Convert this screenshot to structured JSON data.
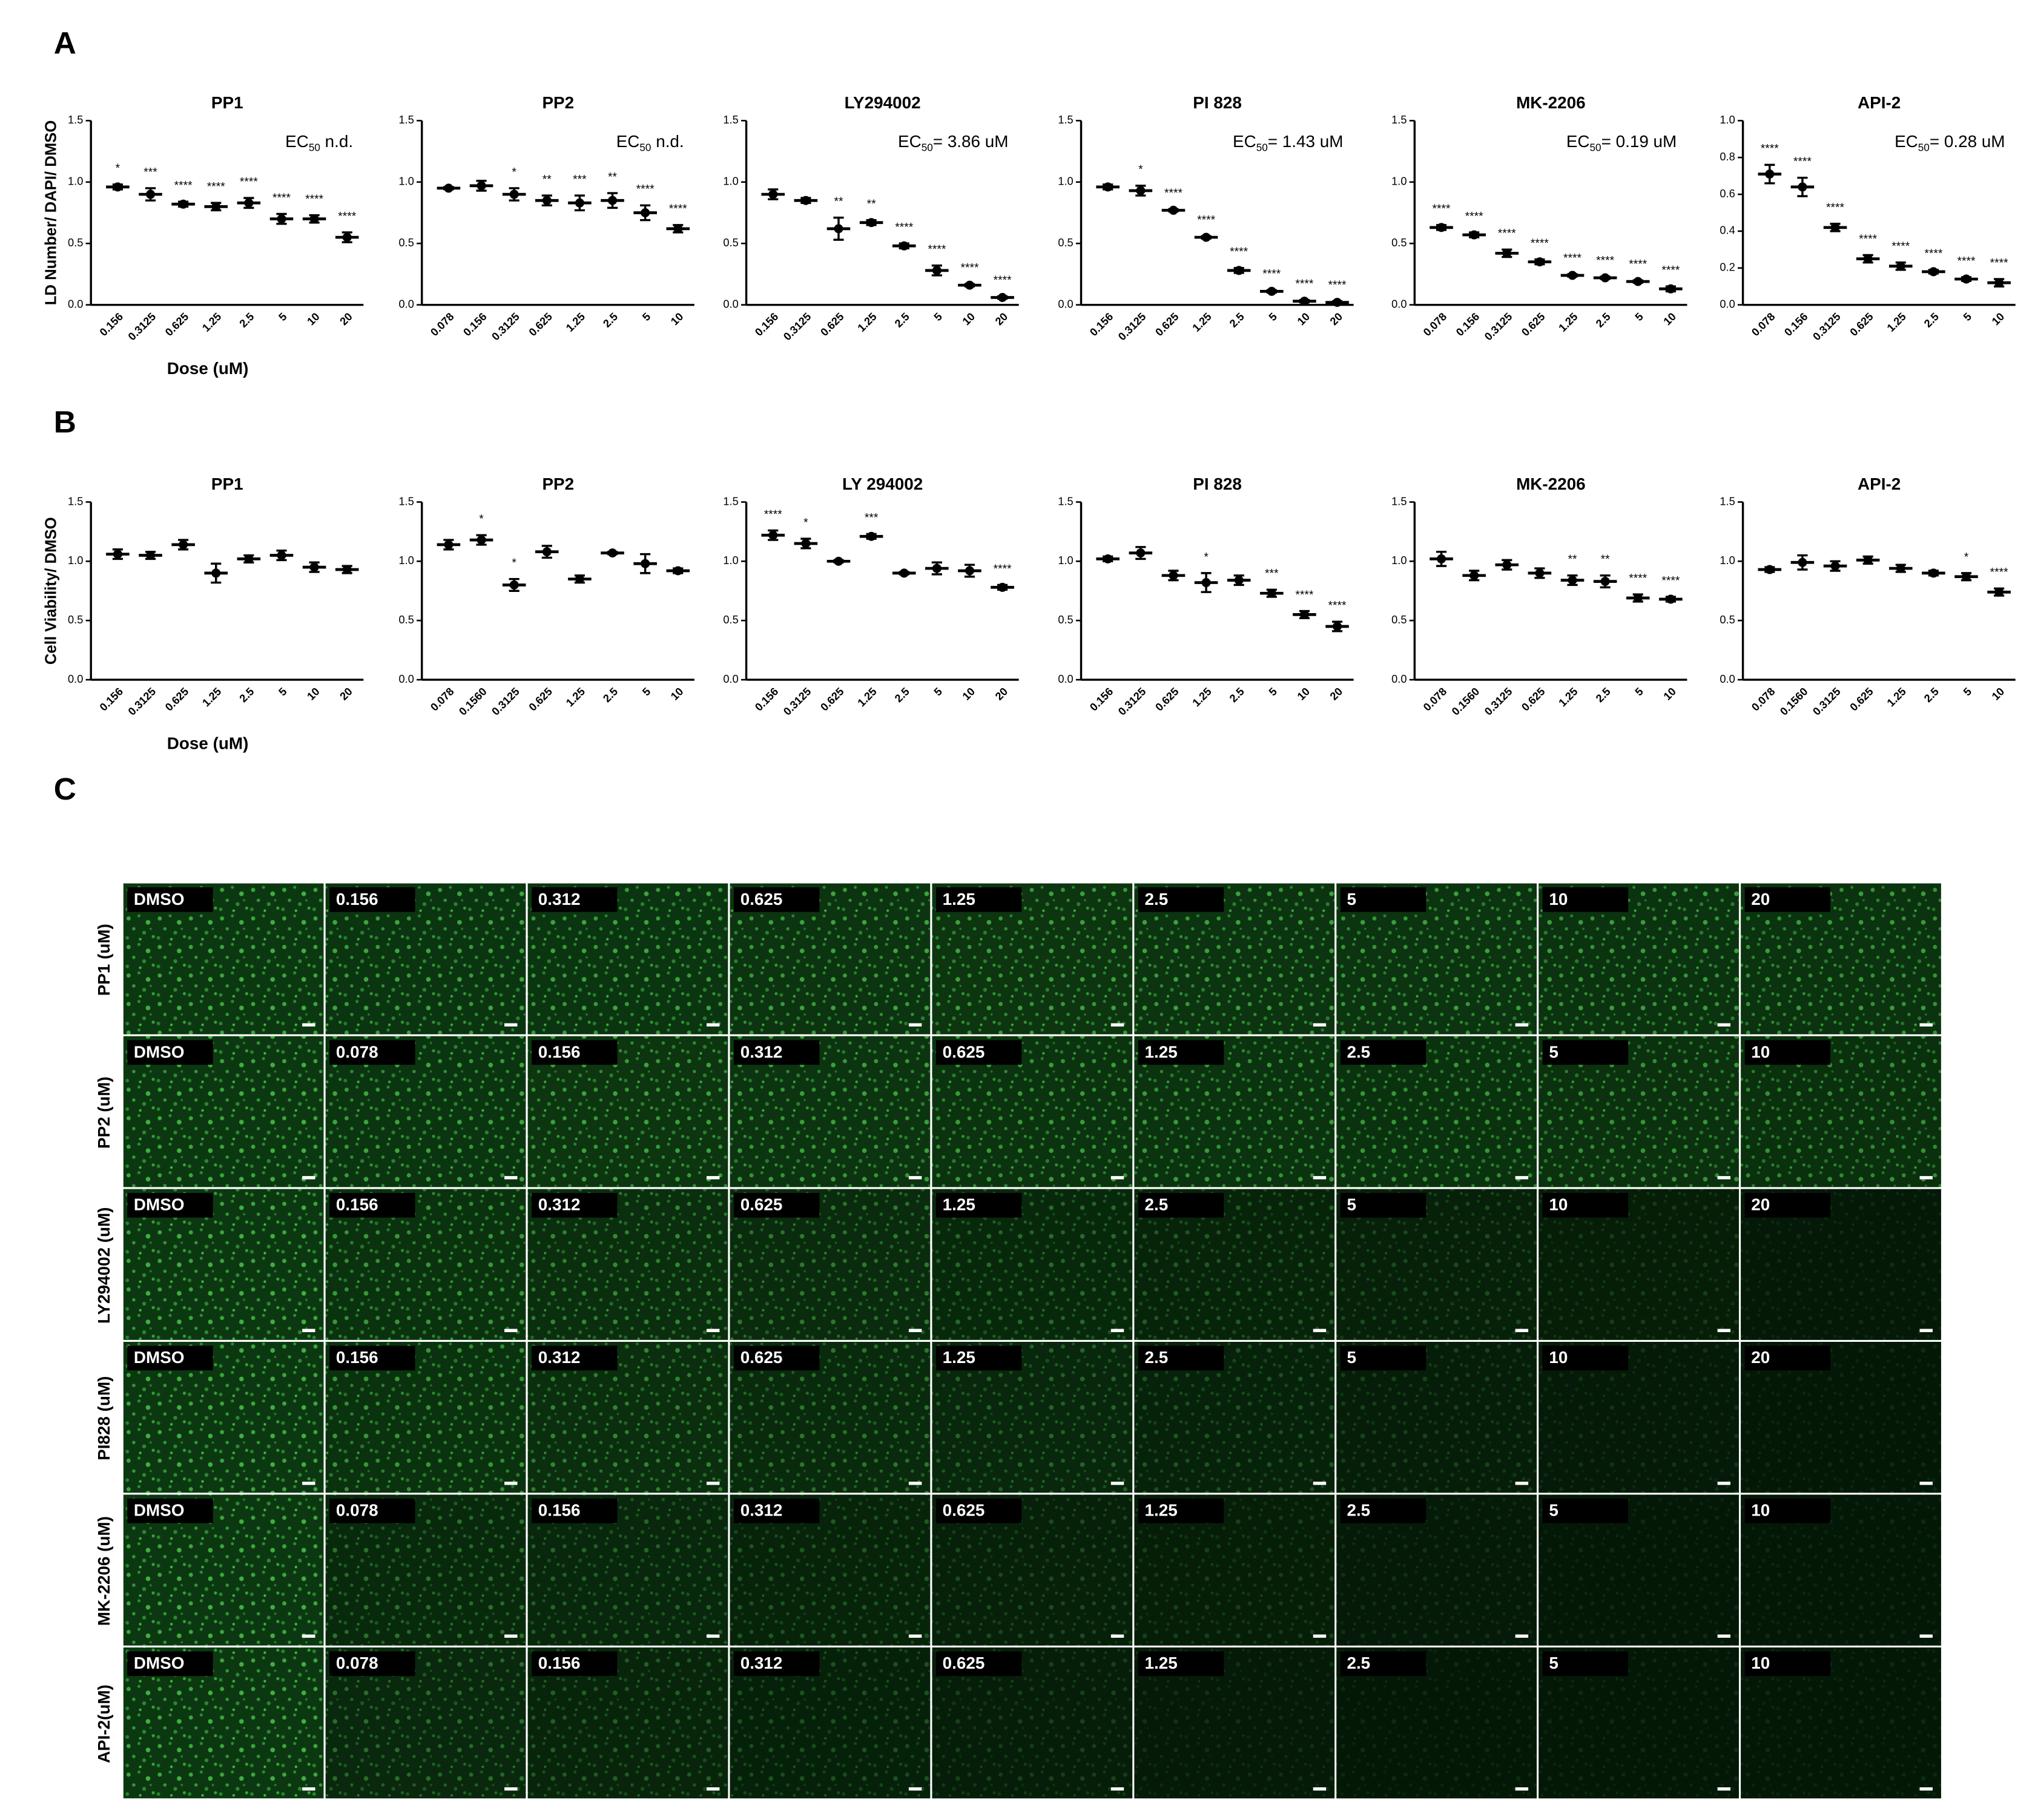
{
  "panels": [
    "A",
    "B",
    "C"
  ],
  "chart_data": [
    {
      "type": "dot",
      "row": 0,
      "title": "PP1",
      "ylabel": "LD Number/ DAPI/ DMSO",
      "xlabel": "Dose (uM)",
      "annotation": [
        "EC",
        "50",
        " n.d."
      ],
      "categories": [
        "0.156",
        "0.3125",
        "0.625",
        "1.25",
        "2.5",
        "5",
        "10",
        "20"
      ],
      "values": [
        0.96,
        0.9,
        0.82,
        0.8,
        0.83,
        0.7,
        0.7,
        0.55
      ],
      "errors": [
        0.02,
        0.05,
        0.02,
        0.03,
        0.04,
        0.04,
        0.03,
        0.04
      ],
      "value_labels": [
        "*",
        "***",
        "****",
        "****",
        "****",
        "****",
        "****",
        "****"
      ],
      "ylim": [
        0,
        1.5
      ],
      "yticks": [
        {
          "value": 0,
          "label": "0.0"
        },
        {
          "value": 0.5,
          "label": "0.5"
        },
        {
          "value": 1,
          "label": "1.0"
        },
        {
          "value": 1.5,
          "label": "1.5"
        }
      ],
      "color": "#000000"
    },
    {
      "type": "dot",
      "row": 0,
      "title": "PP2",
      "annotation": [
        "EC",
        "50",
        " n.d."
      ],
      "categories": [
        "0.078",
        "0.156",
        "0.3125",
        "0.625",
        "1.25",
        "2.5",
        "5",
        "10"
      ],
      "values": [
        0.95,
        0.97,
        0.9,
        0.85,
        0.83,
        0.85,
        0.75,
        0.62
      ],
      "errors": [
        0.01,
        0.04,
        0.05,
        0.04,
        0.06,
        0.06,
        0.06,
        0.03
      ],
      "value_labels": [
        null,
        null,
        "*",
        "**",
        "***",
        "**",
        "****",
        "****"
      ],
      "ylim": [
        0,
        1.5
      ],
      "yticks": [
        {
          "value": 0,
          "label": "0.0"
        },
        {
          "value": 0.5,
          "label": "0.5"
        },
        {
          "value": 1,
          "label": "1.0"
        },
        {
          "value": 1.5,
          "label": "1.5"
        }
      ],
      "color": "#000000"
    },
    {
      "type": "dot",
      "row": 0,
      "title": "LY294002",
      "annotation": [
        "EC",
        "50",
        "= 3.86 uM"
      ],
      "categories": [
        "0.156",
        "0.3125",
        "0.625",
        "1.25",
        "2.5",
        "5",
        "10",
        "20"
      ],
      "values": [
        0.9,
        0.85,
        0.62,
        0.67,
        0.48,
        0.28,
        0.16,
        0.06
      ],
      "errors": [
        0.04,
        0.02,
        0.09,
        0.02,
        0.02,
        0.04,
        0.01,
        0.01
      ],
      "value_labels": [
        null,
        null,
        "**",
        "**",
        "****",
        "****",
        "****",
        "****"
      ],
      "ylim": [
        0,
        1.5
      ],
      "yticks": [
        {
          "value": 0,
          "label": "0.0"
        },
        {
          "value": 0.5,
          "label": "0.5"
        },
        {
          "value": 1,
          "label": "1.0"
        },
        {
          "value": 1.5,
          "label": "1.5"
        }
      ],
      "color": "#000000"
    },
    {
      "type": "dot",
      "row": 0,
      "title": "PI 828",
      "annotation": [
        "EC",
        "50",
        "= 1.43 uM"
      ],
      "categories": [
        "0.156",
        "0.3125",
        "0.625",
        "1.25",
        "2.5",
        "5",
        "10",
        "20"
      ],
      "values": [
        0.96,
        0.93,
        0.77,
        0.55,
        0.28,
        0.11,
        0.03,
        0.02
      ],
      "errors": [
        0.02,
        0.04,
        0.01,
        0.01,
        0.02,
        0.01,
        0.01,
        0.01
      ],
      "value_labels": [
        null,
        "*",
        "****",
        "****",
        "****",
        "****",
        "****",
        "****"
      ],
      "ylim": [
        0,
        1.5
      ],
      "yticks": [
        {
          "value": 0,
          "label": "0.0"
        },
        {
          "value": 0.5,
          "label": "0.5"
        },
        {
          "value": 1,
          "label": "1.0"
        },
        {
          "value": 1.5,
          "label": "1.5"
        }
      ],
      "color": "#000000"
    },
    {
      "type": "dot",
      "row": 0,
      "title": "MK-2206",
      "annotation": [
        "EC",
        "50",
        "= 0.19 uM"
      ],
      "categories": [
        "0.078",
        "0.156",
        "0.3125",
        "0.625",
        "1.25",
        "2.5",
        "5",
        "10"
      ],
      "values": [
        0.63,
        0.57,
        0.42,
        0.35,
        0.24,
        0.22,
        0.19,
        0.13
      ],
      "errors": [
        0.02,
        0.02,
        0.03,
        0.02,
        0.01,
        0.01,
        0.01,
        0.02
      ],
      "value_labels": [
        "****",
        "****",
        "****",
        "****",
        "****",
        "****",
        "****",
        "****"
      ],
      "ylim": [
        0,
        1.5
      ],
      "yticks": [
        {
          "value": 0,
          "label": "0.0"
        },
        {
          "value": 0.5,
          "label": "0.5"
        },
        {
          "value": 1,
          "label": "1.0"
        },
        {
          "value": 1.5,
          "label": "1.5"
        }
      ],
      "color": "#000000"
    },
    {
      "type": "dot",
      "row": 0,
      "title": "API-2",
      "annotation": [
        "EC",
        "50",
        "= 0.28 uM"
      ],
      "categories": [
        "0.078",
        "0.156",
        "0.3125",
        "0.625",
        "1.25",
        "2.5",
        "5",
        "10"
      ],
      "values": [
        0.71,
        0.64,
        0.42,
        0.25,
        0.21,
        0.18,
        0.14,
        0.12
      ],
      "errors": [
        0.05,
        0.05,
        0.02,
        0.02,
        0.02,
        0.01,
        0.01,
        0.02
      ],
      "value_labels": [
        "****",
        "****",
        "****",
        "****",
        "****",
        "****",
        "****",
        "****"
      ],
      "ylim": [
        0,
        1
      ],
      "yticks": [
        {
          "value": 0,
          "label": "0.0"
        },
        {
          "value": 0.2,
          "label": "0.2"
        },
        {
          "value": 0.4,
          "label": "0.4"
        },
        {
          "value": 0.6,
          "label": "0.6"
        },
        {
          "value": 0.8,
          "label": "0.8"
        },
        {
          "value": 1,
          "label": "1.0"
        }
      ],
      "color": "#000000"
    },
    {
      "type": "dot",
      "row": 1,
      "title": "PP1",
      "ylabel": "Cell Viability/ DMSO",
      "xlabel": "Dose (uM)",
      "categories": [
        "0.156",
        "0.3125",
        "0.625",
        "1.25",
        "2.5",
        "5",
        "10",
        "20"
      ],
      "values": [
        1.06,
        1.05,
        1.14,
        0.9,
        1.02,
        1.05,
        0.95,
        0.93
      ],
      "errors": [
        0.04,
        0.03,
        0.04,
        0.08,
        0.03,
        0.04,
        0.04,
        0.03
      ],
      "value_labels": [
        null,
        null,
        null,
        null,
        null,
        null,
        null,
        null
      ],
      "ylim": [
        0,
        1.5
      ],
      "yticks": [
        {
          "value": 0,
          "label": "0.0"
        },
        {
          "value": 0.5,
          "label": "0.5"
        },
        {
          "value": 1,
          "label": "1.0"
        },
        {
          "value": 1.5,
          "label": "1.5"
        }
      ],
      "color": "#000000"
    },
    {
      "type": "dot",
      "row": 1,
      "title": "PP2",
      "categories": [
        "0.078",
        "0.1560",
        "0.3125",
        "0.625",
        "1.25",
        "2.5",
        "5",
        "10"
      ],
      "values": [
        1.14,
        1.18,
        0.8,
        1.08,
        0.85,
        1.07,
        0.98,
        0.92
      ],
      "errors": [
        0.04,
        0.04,
        0.05,
        0.05,
        0.03,
        0.01,
        0.08,
        0.02
      ],
      "value_labels": [
        null,
        "*",
        "*",
        null,
        null,
        null,
        null,
        null
      ],
      "ylim": [
        0,
        1.5
      ],
      "yticks": [
        {
          "value": 0,
          "label": "0.0"
        },
        {
          "value": 0.5,
          "label": "0.5"
        },
        {
          "value": 1,
          "label": "1.0"
        },
        {
          "value": 1.5,
          "label": "1.5"
        }
      ],
      "color": "#000000"
    },
    {
      "type": "dot",
      "row": 1,
      "title": "LY 294002",
      "categories": [
        "0.156",
        "0.3125",
        "0.625",
        "1.25",
        "2.5",
        "5",
        "10",
        "20"
      ],
      "values": [
        1.22,
        1.15,
        1.0,
        1.21,
        0.9,
        0.94,
        0.92,
        0.78
      ],
      "errors": [
        0.04,
        0.04,
        0.01,
        0.02,
        0.01,
        0.05,
        0.05,
        0.02
      ],
      "value_labels": [
        "****",
        "*",
        null,
        "***",
        null,
        null,
        null,
        "****"
      ],
      "ylim": [
        0,
        1.5
      ],
      "yticks": [
        {
          "value": 0,
          "label": "0.0"
        },
        {
          "value": 0.5,
          "label": "0.5"
        },
        {
          "value": 1,
          "label": "1.0"
        },
        {
          "value": 1.5,
          "label": "1.5"
        }
      ],
      "color": "#000000"
    },
    {
      "type": "dot",
      "row": 1,
      "title": "PI 828",
      "categories": [
        "0.156",
        "0.3125",
        "0.625",
        "1.25",
        "2.5",
        "5",
        "10",
        "20"
      ],
      "values": [
        1.02,
        1.07,
        0.88,
        0.82,
        0.84,
        0.73,
        0.55,
        0.45
      ],
      "errors": [
        0.02,
        0.05,
        0.04,
        0.08,
        0.04,
        0.03,
        0.03,
        0.04
      ],
      "value_labels": [
        null,
        null,
        null,
        "*",
        null,
        "***",
        "****",
        "****"
      ],
      "ylim": [
        0,
        1.5
      ],
      "yticks": [
        {
          "value": 0,
          "label": "0.0"
        },
        {
          "value": 0.5,
          "label": "0.5"
        },
        {
          "value": 1,
          "label": "1.0"
        },
        {
          "value": 1.5,
          "label": "1.5"
        }
      ],
      "color": "#000000"
    },
    {
      "type": "dot",
      "row": 1,
      "title": "MK-2206",
      "categories": [
        "0.078",
        "0.1560",
        "0.3125",
        "0.625",
        "1.25",
        "2.5",
        "5",
        "10"
      ],
      "values": [
        1.02,
        0.88,
        0.97,
        0.9,
        0.84,
        0.83,
        0.69,
        0.68
      ],
      "errors": [
        0.06,
        0.04,
        0.04,
        0.04,
        0.04,
        0.05,
        0.03,
        0.02
      ],
      "value_labels": [
        null,
        null,
        null,
        null,
        "**",
        "**",
        "****",
        "****"
      ],
      "ylim": [
        0,
        1.5
      ],
      "yticks": [
        {
          "value": 0,
          "label": "0.0"
        },
        {
          "value": 0.5,
          "label": "0.5"
        },
        {
          "value": 1,
          "label": "1.0"
        },
        {
          "value": 1.5,
          "label": "1.5"
        }
      ],
      "color": "#000000"
    },
    {
      "type": "dot",
      "row": 1,
      "title": "API-2",
      "categories": [
        "0.078",
        "0.1560",
        "0.3125",
        "0.625",
        "1.25",
        "2.5",
        "5",
        "10"
      ],
      "values": [
        0.93,
        0.99,
        0.96,
        1.01,
        0.94,
        0.9,
        0.87,
        0.74
      ],
      "errors": [
        0.02,
        0.06,
        0.04,
        0.03,
        0.03,
        0.02,
        0.03,
        0.03
      ],
      "value_labels": [
        null,
        null,
        null,
        null,
        null,
        null,
        "*",
        "****"
      ],
      "ylim": [
        0,
        1.5
      ],
      "yticks": [
        {
          "value": 0,
          "label": "0.0"
        },
        {
          "value": 0.5,
          "label": "0.5"
        },
        {
          "value": 1,
          "label": "1.0"
        },
        {
          "value": 1.5,
          "label": "1.5"
        }
      ],
      "color": "#000000"
    }
  ],
  "image_grid": {
    "rows": [
      {
        "label": "PP1 (uM)",
        "doses": [
          "DMSO",
          "0.156",
          "0.312",
          "0.625",
          "1.25",
          "2.5",
          "5",
          "10",
          "20"
        ]
      },
      {
        "label": "PP2 (uM)",
        "doses": [
          "DMSO",
          "0.078",
          "0.156",
          "0.312",
          "0.625",
          "1.25",
          "2.5",
          "5",
          "10"
        ]
      },
      {
        "label": "LY294002 (uM)",
        "doses": [
          "DMSO",
          "0.156",
          "0.312",
          "0.625",
          "1.25",
          "2.5",
          "5",
          "10",
          "20"
        ]
      },
      {
        "label": "PI828 (uM)",
        "doses": [
          "DMSO",
          "0.156",
          "0.312",
          "0.625",
          "1.25",
          "2.5",
          "5",
          "10",
          "20"
        ]
      },
      {
        "label": "MK-2206 (uM)",
        "doses": [
          "DMSO",
          "0.078",
          "0.156",
          "0.312",
          "0.625",
          "1.25",
          "2.5",
          "5",
          "10"
        ]
      },
      {
        "label": "API-2(uM)",
        "doses": [
          "DMSO",
          "0.078",
          "0.156",
          "0.312",
          "0.625",
          "1.25",
          "2.5",
          "5",
          "10"
        ]
      }
    ]
  }
}
